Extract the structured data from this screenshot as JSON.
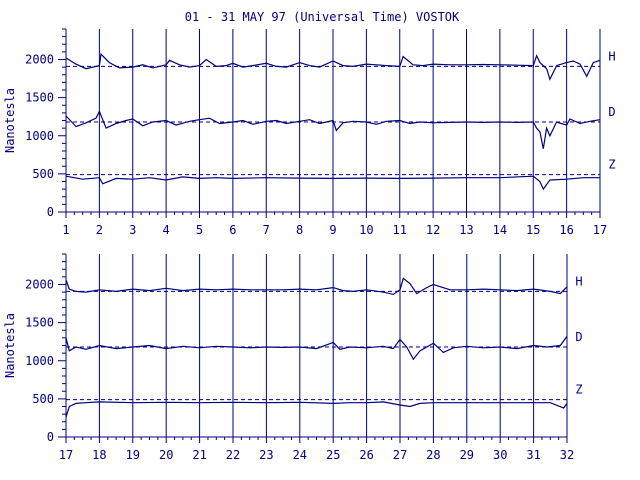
{
  "title": "01 - 31 MAY 97 (Universal Time) VOSTOK",
  "colors": {
    "ink": "#000080",
    "background": "#ffffff"
  },
  "chart_data": [
    {
      "type": "line",
      "title": "01 - 31 MAY 97 (Universal Time) VOSTOK",
      "xlabel": "",
      "ylabel": "Nanotesla",
      "xlim": [
        1,
        17
      ],
      "ylim": [
        0,
        2400
      ],
      "x_ticks": [
        1,
        2,
        3,
        4,
        5,
        6,
        7,
        8,
        9,
        10,
        11,
        12,
        13,
        14,
        15,
        16,
        17
      ],
      "y_ticks": [
        0,
        500,
        1000,
        1500,
        2000
      ],
      "grid": "vertical at each day",
      "series": [
        {
          "name": "H",
          "baseline": 1910,
          "x": [
            1.0,
            1.3,
            1.6,
            2.0,
            2.05,
            2.3,
            2.6,
            3.0,
            3.3,
            3.6,
            4.0,
            4.1,
            4.4,
            4.7,
            5.0,
            5.2,
            5.5,
            5.8,
            6.0,
            6.3,
            6.6,
            7.0,
            7.3,
            7.6,
            8.0,
            8.3,
            8.6,
            9.0,
            9.3,
            9.6,
            10.0,
            10.3,
            10.6,
            11.0,
            11.1,
            11.4,
            11.7,
            12.0,
            12.5,
            13.0,
            13.5,
            14.0,
            14.5,
            15.0,
            15.1,
            15.2,
            15.4,
            15.5,
            15.7,
            16.0,
            16.2,
            16.4,
            16.6,
            16.8,
            17.0
          ],
          "values": [
            2020,
            1940,
            1880,
            1920,
            2070,
            1960,
            1890,
            1900,
            1930,
            1890,
            1930,
            1990,
            1930,
            1900,
            1920,
            2000,
            1910,
            1920,
            1950,
            1900,
            1920,
            1950,
            1910,
            1900,
            1960,
            1920,
            1900,
            1980,
            1920,
            1910,
            1940,
            1930,
            1920,
            1910,
            2040,
            1930,
            1920,
            1940,
            1930,
            1930,
            1935,
            1930,
            1925,
            1920,
            2050,
            1960,
            1880,
            1740,
            1920,
            1960,
            1980,
            1940,
            1780,
            1960,
            1990
          ]
        },
        {
          "name": "D",
          "baseline": 1180,
          "x": [
            1.0,
            1.3,
            1.6,
            1.9,
            2.0,
            2.2,
            2.5,
            2.8,
            3.0,
            3.3,
            3.6,
            4.0,
            4.3,
            4.7,
            5.0,
            5.3,
            5.6,
            6.0,
            6.3,
            6.6,
            7.0,
            7.3,
            7.6,
            8.0,
            8.3,
            8.6,
            9.0,
            9.1,
            9.3,
            9.6,
            10.0,
            10.3,
            10.6,
            11.0,
            11.3,
            11.6,
            12.0,
            12.5,
            13.0,
            13.5,
            14.0,
            14.5,
            15.0,
            15.1,
            15.2,
            15.3,
            15.4,
            15.5,
            15.7,
            16.0,
            16.1,
            16.4,
            16.7,
            17.0
          ],
          "values": [
            1260,
            1120,
            1170,
            1230,
            1320,
            1100,
            1160,
            1200,
            1220,
            1130,
            1180,
            1200,
            1140,
            1190,
            1210,
            1230,
            1160,
            1180,
            1200,
            1150,
            1190,
            1200,
            1160,
            1190,
            1210,
            1160,
            1200,
            1070,
            1170,
            1190,
            1180,
            1150,
            1190,
            1200,
            1160,
            1180,
            1170,
            1175,
            1180,
            1175,
            1180,
            1175,
            1180,
            1100,
            1050,
            830,
            1100,
            1000,
            1180,
            1140,
            1220,
            1160,
            1190,
            1210
          ]
        },
        {
          "name": "Z",
          "baseline": 490,
          "x": [
            1.0,
            1.5,
            2.0,
            2.1,
            2.5,
            3.0,
            3.5,
            4.0,
            4.5,
            5.0,
            5.5,
            6.0,
            7.0,
            8.0,
            9.0,
            10.0,
            11.0,
            12.0,
            13.0,
            14.0,
            15.0,
            15.2,
            15.3,
            15.5,
            16.0,
            16.5,
            17.0
          ],
          "values": [
            470,
            430,
            450,
            370,
            440,
            430,
            450,
            420,
            460,
            440,
            450,
            440,
            450,
            445,
            440,
            445,
            440,
            445,
            450,
            450,
            470,
            400,
            300,
            420,
            430,
            450,
            450
          ]
        }
      ]
    },
    {
      "type": "line",
      "title": "",
      "xlabel": "",
      "ylabel": "Nanotesla",
      "xlim": [
        17,
        32
      ],
      "ylim": [
        0,
        2400
      ],
      "x_ticks": [
        17,
        18,
        19,
        20,
        21,
        22,
        23,
        24,
        25,
        26,
        27,
        28,
        29,
        30,
        31,
        32
      ],
      "y_ticks": [
        0,
        500,
        1000,
        1500,
        2000
      ],
      "grid": "vertical at each day",
      "series": [
        {
          "name": "H",
          "baseline": 1910,
          "x": [
            17.0,
            17.1,
            17.3,
            17.6,
            18.0,
            18.5,
            19.0,
            19.5,
            20.0,
            20.5,
            21.0,
            21.5,
            22.0,
            22.5,
            23.0,
            23.5,
            24.0,
            24.5,
            25.0,
            25.3,
            25.6,
            26.0,
            26.5,
            26.8,
            27.0,
            27.1,
            27.3,
            27.5,
            27.8,
            28.0,
            28.5,
            29.0,
            29.5,
            30.0,
            30.5,
            31.0,
            31.5,
            31.8,
            32.0
          ],
          "values": [
            2060,
            1940,
            1910,
            1900,
            1930,
            1910,
            1940,
            1920,
            1950,
            1920,
            1940,
            1930,
            1940,
            1930,
            1930,
            1930,
            1940,
            1930,
            1960,
            1920,
            1910,
            1930,
            1900,
            1870,
            1930,
            2080,
            2010,
            1880,
            1960,
            2000,
            1930,
            1930,
            1940,
            1930,
            1920,
            1940,
            1910,
            1880,
            1970
          ]
        },
        {
          "name": "D",
          "baseline": 1180,
          "x": [
            17.0,
            17.1,
            17.3,
            17.6,
            18.0,
            18.5,
            19.0,
            19.5,
            20.0,
            20.5,
            21.0,
            21.5,
            22.0,
            22.5,
            23.0,
            23.5,
            24.0,
            24.5,
            25.0,
            25.2,
            25.5,
            26.0,
            26.5,
            26.8,
            27.0,
            27.2,
            27.4,
            27.6,
            28.0,
            28.3,
            28.6,
            29.0,
            29.5,
            30.0,
            30.5,
            31.0,
            31.4,
            31.8,
            32.0
          ],
          "values": [
            1300,
            1130,
            1180,
            1150,
            1200,
            1160,
            1180,
            1200,
            1160,
            1190,
            1170,
            1190,
            1180,
            1170,
            1180,
            1175,
            1180,
            1160,
            1240,
            1150,
            1180,
            1170,
            1190,
            1160,
            1280,
            1180,
            1020,
            1130,
            1230,
            1110,
            1170,
            1190,
            1170,
            1180,
            1160,
            1200,
            1180,
            1200,
            1320
          ]
        },
        {
          "name": "Z",
          "baseline": 490,
          "x": [
            17.0,
            17.1,
            17.3,
            17.6,
            18.0,
            19.0,
            20.0,
            21.0,
            22.0,
            23.0,
            24.0,
            25.0,
            25.5,
            26.0,
            26.5,
            27.0,
            27.3,
            27.6,
            28.0,
            28.5,
            29.0,
            30.0,
            31.0,
            31.5,
            31.9,
            32.0
          ],
          "values": [
            260,
            400,
            440,
            450,
            460,
            450,
            455,
            450,
            455,
            450,
            455,
            440,
            450,
            450,
            460,
            420,
            400,
            440,
            450,
            450,
            450,
            450,
            450,
            450,
            380,
            440
          ]
        }
      ]
    }
  ]
}
